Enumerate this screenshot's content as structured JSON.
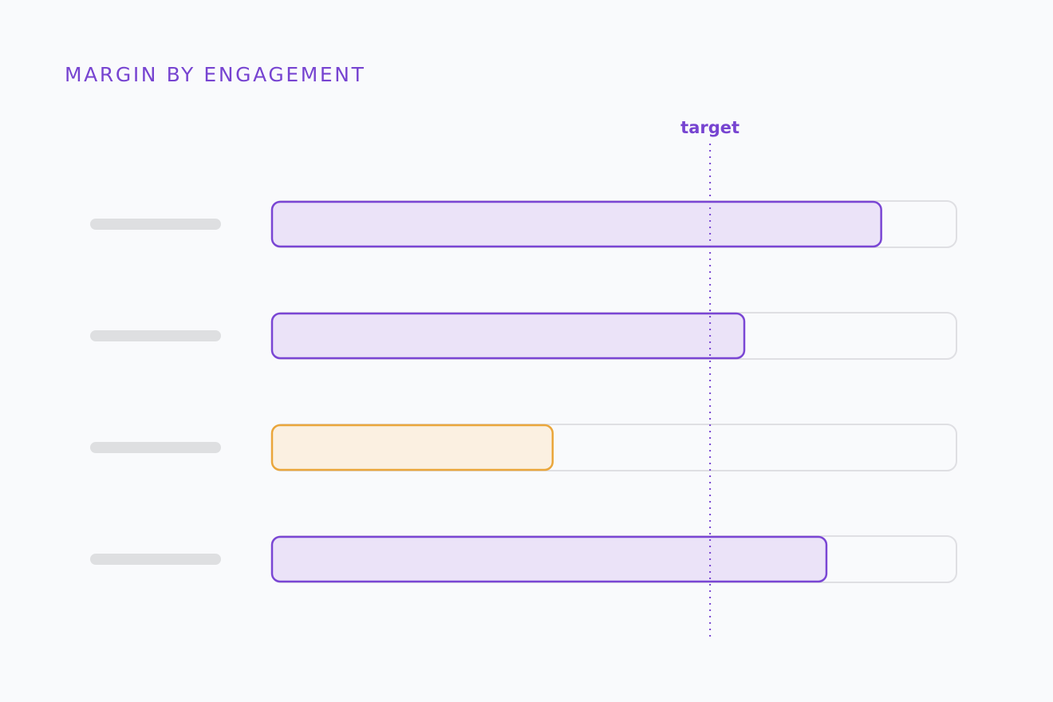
{
  "title": "MARGIN BY ENGAGEMENT",
  "colors": {
    "accent": "#7744d1",
    "bar_fill": "#ebe3f8",
    "bar_stroke": "#7a46d4",
    "warning_fill": "#fbf0e1",
    "warning_stroke": "#eaa63b",
    "track_fill": "#f9fafc",
    "track_stroke": "#dfdfe3",
    "placeholder": "#dedfe1"
  },
  "chart_data": {
    "type": "bar",
    "orientation": "horizontal",
    "categories": [
      "",
      "",
      "",
      ""
    ],
    "values": [
      89,
      69,
      41,
      81
    ],
    "status": [
      "normal",
      "normal",
      "below-target",
      "normal"
    ],
    "xlim": [
      0,
      100
    ],
    "target": {
      "value": 64,
      "label": "target"
    },
    "title": "MARGIN BY ENGAGEMENT",
    "xlabel": "",
    "ylabel": "",
    "grid": false,
    "legend": "none"
  }
}
